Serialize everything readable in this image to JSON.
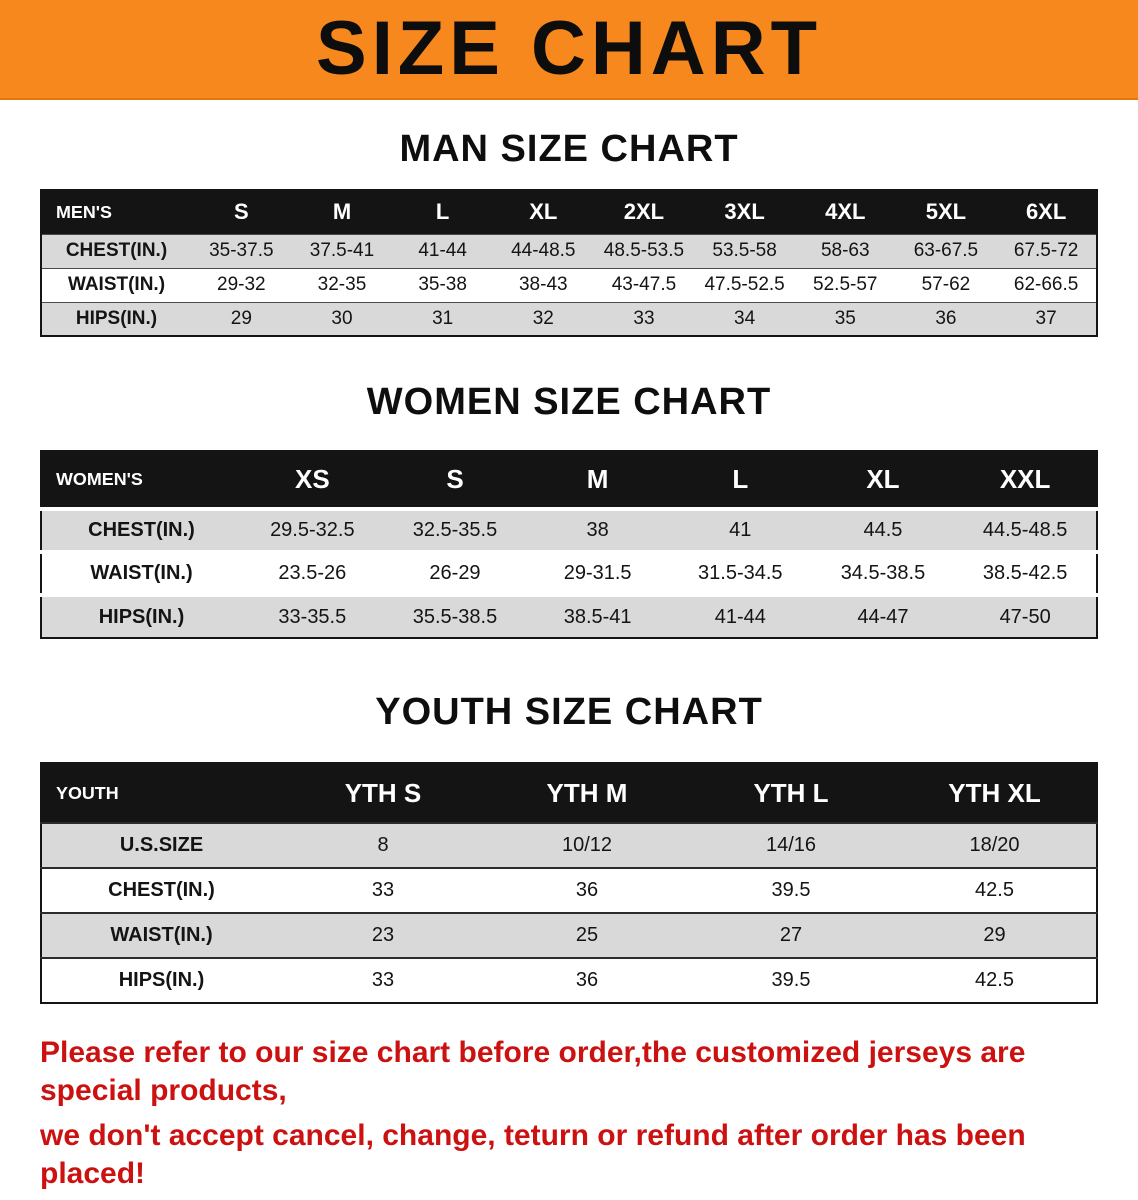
{
  "banner": {
    "title": "SIZE CHART"
  },
  "sections": {
    "men": {
      "heading": "MAN SIZE CHART",
      "table": {
        "header": [
          "MEN'S",
          "S",
          "M",
          "L",
          "XL",
          "2XL",
          "3XL",
          "4XL",
          "5XL",
          "6XL"
        ],
        "rows": [
          [
            "CHEST(IN.)",
            "35-37.5",
            "37.5-41",
            "41-44",
            "44-48.5",
            "48.5-53.5",
            "53.5-58",
            "58-63",
            "63-67.5",
            "67.5-72"
          ],
          [
            "WAIST(IN.)",
            "29-32",
            "32-35",
            "35-38",
            "38-43",
            "43-47.5",
            "47.5-52.5",
            "52.5-57",
            "57-62",
            "62-66.5"
          ],
          [
            "HIPS(IN.)",
            "29",
            "30",
            "31",
            "32",
            "33",
            "34",
            "35",
            "36",
            "37"
          ]
        ]
      }
    },
    "women": {
      "heading": "WOMEN SIZE CHART",
      "table": {
        "header": [
          "WOMEN'S",
          "XS",
          "S",
          "M",
          "L",
          "XL",
          "XXL"
        ],
        "rows": [
          [
            "CHEST(IN.)",
            "29.5-32.5",
            "32.5-35.5",
            "38",
            "41",
            "44.5",
            "44.5-48.5"
          ],
          [
            "WAIST(IN.)",
            "23.5-26",
            "26-29",
            "29-31.5",
            "31.5-34.5",
            "34.5-38.5",
            "38.5-42.5"
          ],
          [
            "HIPS(IN.)",
            "33-35.5",
            "35.5-38.5",
            "38.5-41",
            "41-44",
            "44-47",
            "47-50"
          ]
        ]
      }
    },
    "youth": {
      "heading": "YOUTH SIZE CHART",
      "table": {
        "header": [
          "YOUTH",
          "YTH S",
          "YTH M",
          "YTH L",
          "YTH XL"
        ],
        "rows": [
          [
            "U.S.SIZE",
            "8",
            "10/12",
            "14/16",
            "18/20"
          ],
          [
            "CHEST(IN.)",
            "33",
            "36",
            "39.5",
            "42.5"
          ],
          [
            "WAIST(IN.)",
            "23",
            "25",
            "27",
            "29"
          ],
          [
            "HIPS(IN.)",
            "33",
            "36",
            "39.5",
            "42.5"
          ]
        ]
      }
    }
  },
  "footer": {
    "line1": "Please refer to our size chart before order,the customized jerseys are special products,",
    "line2": "we don't accept cancel, change, teturn or refund after order has been placed!"
  },
  "colors": {
    "banner_bg": "#f6881d",
    "table_header_bg": "#141414",
    "row_shade": "#d9d9d9",
    "footer_text": "#cc1111"
  }
}
